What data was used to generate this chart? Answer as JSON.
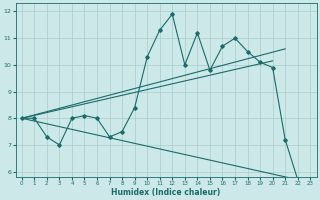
{
  "xlabel": "Humidex (Indice chaleur)",
  "bg_color": "#cce8e8",
  "grid_color": "#aacccc",
  "line_color": "#1a6b6b",
  "xlim": [
    -0.5,
    23.5
  ],
  "ylim": [
    5.8,
    12.3
  ],
  "yticks": [
    6,
    7,
    8,
    9,
    10,
    11,
    12
  ],
  "xticks": [
    0,
    1,
    2,
    3,
    4,
    5,
    6,
    7,
    8,
    9,
    10,
    11,
    12,
    13,
    14,
    15,
    16,
    17,
    18,
    19,
    20,
    21,
    22,
    23
  ],
  "line1_x": [
    0,
    1,
    2,
    3,
    4,
    5,
    6,
    7,
    8,
    9,
    10,
    11,
    12,
    13,
    14,
    15,
    16,
    17,
    18,
    19,
    20,
    21,
    22
  ],
  "line1_y": [
    8.0,
    8.0,
    7.3,
    7.0,
    8.0,
    8.1,
    8.0,
    7.3,
    7.5,
    8.4,
    10.3,
    11.3,
    11.9,
    10.0,
    11.2,
    9.8,
    10.7,
    11.0,
    10.5,
    10.1,
    9.9,
    7.2,
    5.7
  ],
  "line2_x": [
    0,
    20
  ],
  "line2_y": [
    8.0,
    10.15
  ],
  "line3_x": [
    0,
    21
  ],
  "line3_y": [
    8.0,
    10.6
  ],
  "line4_x": [
    0,
    22
  ],
  "line4_y": [
    8.0,
    5.7
  ]
}
